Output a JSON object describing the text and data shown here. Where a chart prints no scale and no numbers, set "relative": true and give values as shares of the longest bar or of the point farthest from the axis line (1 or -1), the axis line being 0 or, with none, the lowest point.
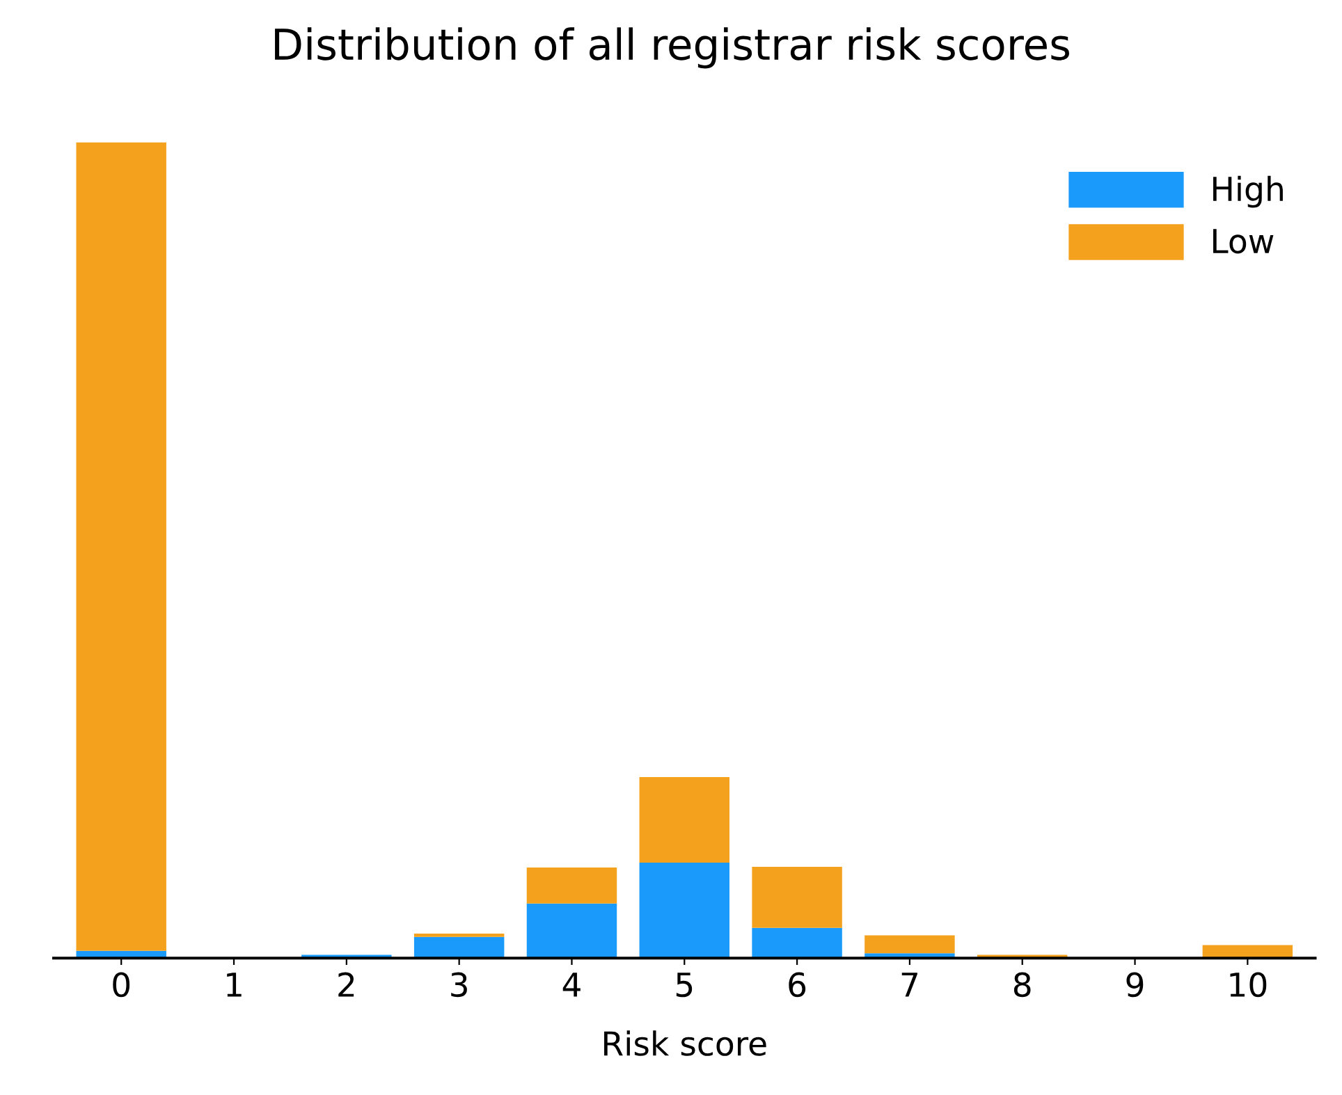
{
  "chart_data": {
    "type": "bar",
    "title": "Distribution of all registrar risk scores",
    "xlabel": "Risk score",
    "relative": true,
    "stacked": true,
    "legend": "top right",
    "grid": false,
    "categories": [
      "0",
      "1",
      "2",
      "3",
      "4",
      "5",
      "6",
      "7",
      "8",
      "9",
      "10"
    ],
    "series": [
      {
        "name": "High",
        "color": "#1a9bfc",
        "values": [
          0.009,
          0,
          0.004,
          0.026,
          0.067,
          0.117,
          0.037,
          0.006,
          null,
          0,
          0
        ]
      },
      {
        "name": "Low",
        "color": "#f4a21e",
        "values": [
          0.991,
          0,
          null,
          0.004,
          0.044,
          0.105,
          0.075,
          0.022,
          0.004,
          0,
          0.016
        ]
      }
    ]
  }
}
